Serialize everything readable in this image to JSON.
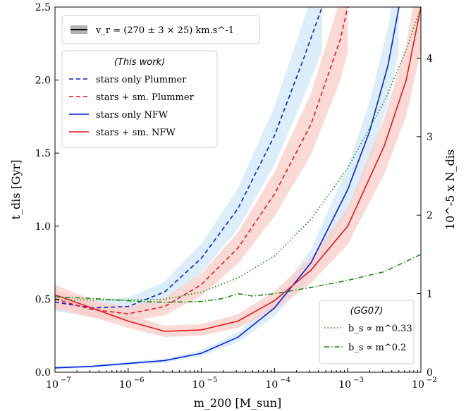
{
  "chart_data": {
    "type": "line",
    "xlabel": "m_200 [M_sun]",
    "ylabel": "t_dis [Gyr]",
    "ylabel_right": "10^-5 x N_dis",
    "x_scale": "log",
    "xlim_log10": [
      -7,
      -2
    ],
    "ylim": [
      0,
      2.5
    ],
    "ylim_right": [
      0,
      4.65
    ],
    "x_tick_exponents": [
      -7,
      -6,
      -5,
      -4,
      -3,
      -2
    ],
    "y_ticks": [
      "0.0",
      "0.5",
      "1.0",
      "1.5",
      "2.0",
      "2.5"
    ],
    "y_ticks_right": [
      "0",
      "1",
      "2",
      "3",
      "4"
    ],
    "grid": false,
    "band_legend_label": "v_r = (270 ± 3 × 25) km.s^-1",
    "legend_this_work": {
      "title": "(This work)",
      "placement": "top-left",
      "entries": [
        "stars only Plummer",
        "stars + sm. Plummer",
        "stars only NFW",
        "stars + sm. NFW"
      ]
    },
    "legend_gg07": {
      "title": "(GG07)",
      "placement": "bottom-right",
      "entries": [
        "b_s ∝ m^0.33",
        "b_s ∝ m^0.2"
      ]
    },
    "colors": {
      "blue": "#0a1fd6",
      "red": "#e8141c",
      "green": "#1e8a12",
      "band_blue": "#cfe8f8",
      "band_red": "#f9cdc8"
    },
    "series": [
      {
        "name": "stars only Plummer",
        "color": "#0a1fd6",
        "dash": "dashed",
        "band": "#cfe8f8",
        "band_halfwidth": 0.12,
        "x_log10": [
          -7,
          -6.5,
          -6,
          -5.5,
          -5,
          -4.5,
          -4,
          -3.6,
          -3.35
        ],
        "y": [
          0.48,
          0.44,
          0.45,
          0.55,
          0.78,
          1.12,
          1.62,
          2.15,
          2.5
        ]
      },
      {
        "name": "stars + sm. Plummer",
        "color": "#e8141c",
        "dash": "dashed",
        "band": "#f9cdc8",
        "band_halfwidth": 0.12,
        "x_log10": [
          -7,
          -6.5,
          -6,
          -5.5,
          -5,
          -4.5,
          -4,
          -3.5,
          -3.1,
          -3.0
        ],
        "y": [
          0.5,
          0.43,
          0.4,
          0.45,
          0.6,
          0.85,
          1.22,
          1.7,
          2.28,
          2.5
        ]
      },
      {
        "name": "stars only NFW",
        "color": "#0a1fd6",
        "dash": "solid",
        "band": "#cfe8f8",
        "band_halfwidth": 0.12,
        "x_log10": [
          -7,
          -6.5,
          -6,
          -5.5,
          -5,
          -4.5,
          -4,
          -3.5,
          -3,
          -2.7,
          -2.45,
          -2.3
        ],
        "y": [
          0.03,
          0.04,
          0.06,
          0.08,
          0.13,
          0.24,
          0.44,
          0.75,
          1.25,
          1.65,
          2.1,
          2.5
        ]
      },
      {
        "name": "stars + sm. NFW",
        "color": "#e8141c",
        "dash": "solid",
        "band": "#f9cdc8",
        "band_halfwidth": 0.12,
        "x_log10": [
          -7,
          -6.5,
          -6,
          -5.5,
          -5,
          -4.5,
          -4,
          -3.5,
          -3,
          -2.5,
          -2.2,
          -2
        ],
        "y": [
          0.53,
          0.44,
          0.35,
          0.28,
          0.29,
          0.35,
          0.49,
          0.7,
          1.0,
          1.55,
          2.0,
          2.5
        ]
      },
      {
        "name": "b_s ∝ m^0.33",
        "color": "#1e8a12",
        "dash": "dotted",
        "axis": "right",
        "x_log10": [
          -7,
          -6.5,
          -6,
          -5.5,
          -5,
          -4.5,
          -4,
          -3.5,
          -3,
          -2.5,
          -2.2,
          -2
        ],
        "y": [
          0.92,
          0.92,
          0.92,
          0.93,
          1.02,
          1.2,
          1.48,
          1.95,
          2.6,
          3.45,
          4.1,
          4.65
        ]
      },
      {
        "name": "b_s ∝ m^0.2",
        "color": "#1e8a12",
        "dash": "dashdot",
        "axis": "right",
        "x_log10": [
          -7,
          -6.5,
          -6,
          -5.5,
          -5,
          -4.7,
          -4.5,
          -4.3,
          -4,
          -3.5,
          -3,
          -2.5,
          -2
        ],
        "y": [
          0.96,
          0.94,
          0.91,
          0.89,
          0.9,
          0.94,
          1.0,
          0.97,
          1.0,
          1.08,
          1.17,
          1.28,
          1.5
        ]
      }
    ]
  }
}
